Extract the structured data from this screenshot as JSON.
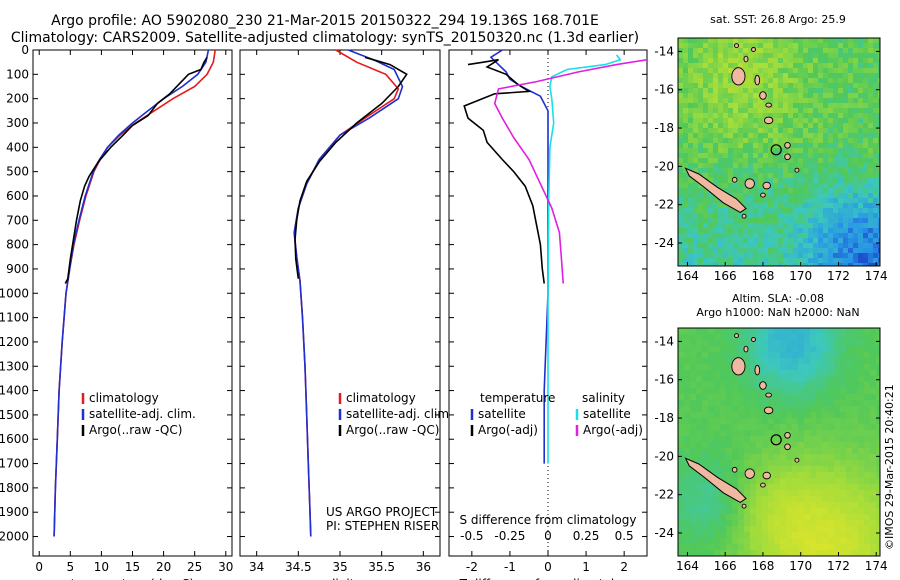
{
  "header": {
    "line1": "Argo profile: AO 5902080_230 21-Mar-2015 20150322_294 19.136S 168.701E",
    "line2": "Climatology: CARS2009. Satellite-adjusted climatology: synTS_20150320.nc (1.3d earlier)"
  },
  "side_text": "©IMOS 29-Mar-2015 20:40:21",
  "colors": {
    "climatology": "#e41a1c",
    "satellite": "#1f2fd0",
    "argo": "#000000",
    "satellite_salinity": "#18e0e8",
    "argo_salinity": "#e020e0"
  },
  "chart_data": [
    {
      "type": "line",
      "xlabel": "temperature (deg C)",
      "xlim": [
        -1,
        31
      ],
      "xticks": [
        0,
        5,
        10,
        15,
        20,
        25,
        30
      ],
      "ylim": [
        0,
        2080
      ],
      "yticks": [
        0,
        100,
        200,
        300,
        400,
        500,
        600,
        700,
        800,
        900,
        1000,
        1100,
        1200,
        1300,
        1400,
        1500,
        1600,
        1700,
        1800,
        1900,
        2000
      ],
      "legend": [
        "climatology",
        "satellite-adj. clim.",
        "Argo(..raw -QC)"
      ],
      "series": [
        {
          "name": "climatology",
          "color": "#e41a1c",
          "points": [
            [
              28.3,
              0
            ],
            [
              28,
              50
            ],
            [
              27,
              100
            ],
            [
              25,
              150
            ],
            [
              21.5,
              200
            ],
            [
              18.5,
              250
            ],
            [
              15.5,
              300
            ],
            [
              13,
              350
            ],
            [
              11,
              400
            ],
            [
              9.8,
              450
            ],
            [
              8.8,
              500
            ],
            [
              7.5,
              600
            ],
            [
              6.5,
              700
            ],
            [
              5.6,
              800
            ],
            [
              4.9,
              900
            ],
            [
              4.3,
              1000
            ],
            [
              3.7,
              1200
            ],
            [
              3.2,
              1400
            ],
            [
              2.9,
              1600
            ],
            [
              2.6,
              1800
            ],
            [
              2.4,
              2000
            ]
          ]
        },
        {
          "name": "satellite-adj. clim.",
          "color": "#1f2fd0",
          "points": [
            [
              27.2,
              0
            ],
            [
              26.8,
              50
            ],
            [
              25.5,
              100
            ],
            [
              23,
              150
            ],
            [
              20,
              200
            ],
            [
              17.5,
              250
            ],
            [
              15,
              300
            ],
            [
              12.8,
              350
            ],
            [
              11,
              400
            ],
            [
              9.7,
              450
            ],
            [
              8.7,
              500
            ],
            [
              7.4,
              600
            ],
            [
              6.4,
              700
            ],
            [
              5.5,
              800
            ],
            [
              4.9,
              900
            ],
            [
              4.3,
              1000
            ],
            [
              3.7,
              1200
            ],
            [
              3.2,
              1400
            ],
            [
              2.9,
              1600
            ],
            [
              2.6,
              1800
            ],
            [
              2.4,
              2000
            ]
          ]
        },
        {
          "name": "Argo(..raw -QC)",
          "color": "#000000",
          "points": [
            [
              27,
              30
            ],
            [
              26.5,
              50
            ],
            [
              26,
              80
            ],
            [
              24,
              100
            ],
            [
              22.5,
              140
            ],
            [
              21,
              180
            ],
            [
              19,
              220
            ],
            [
              17.5,
              270
            ],
            [
              15,
              310
            ],
            [
              13.5,
              350
            ],
            [
              11.5,
              400
            ],
            [
              9.5,
              460
            ],
            [
              8,
              520
            ],
            [
              7.3,
              560
            ],
            [
              6.6,
              620
            ],
            [
              6,
              700
            ],
            [
              5.5,
              780
            ],
            [
              5,
              860
            ],
            [
              4.6,
              940
            ],
            [
              4.2,
              960
            ]
          ]
        }
      ]
    },
    {
      "type": "line",
      "xlabel": "salinity",
      "xlim": [
        33.8,
        36.2
      ],
      "xticks": [
        34,
        34.5,
        35,
        35.5,
        36
      ],
      "ylim": [
        0,
        2080
      ],
      "legend": [
        "climatology",
        "satellite-adj. clim.",
        "Argo(..raw -QC)"
      ],
      "annotation": [
        "US ARGO PROJECT",
        "PI: STEPHEN RISER"
      ],
      "series": [
        {
          "name": "climatology",
          "color": "#e41a1c",
          "points": [
            [
              34.95,
              0
            ],
            [
              35.2,
              50
            ],
            [
              35.55,
              100
            ],
            [
              35.7,
              160
            ],
            [
              35.65,
              200
            ],
            [
              35.3,
              280
            ],
            [
              35,
              350
            ],
            [
              34.75,
              450
            ],
            [
              34.6,
              550
            ],
            [
              34.5,
              650
            ],
            [
              34.45,
              750
            ],
            [
              34.48,
              850
            ],
            [
              34.52,
              950
            ],
            [
              34.55,
              1100
            ],
            [
              34.58,
              1300
            ],
            [
              34.6,
              1500
            ],
            [
              34.62,
              1700
            ],
            [
              34.64,
              1900
            ],
            [
              34.65,
              2000
            ]
          ]
        },
        {
          "name": "satellite-adj. clim.",
          "color": "#1f2fd0",
          "points": [
            [
              35.1,
              0
            ],
            [
              35.4,
              40
            ],
            [
              35.65,
              80
            ],
            [
              35.75,
              150
            ],
            [
              35.7,
              200
            ],
            [
              35.35,
              280
            ],
            [
              35,
              350
            ],
            [
              34.75,
              450
            ],
            [
              34.6,
              550
            ],
            [
              34.5,
              650
            ],
            [
              34.45,
              750
            ],
            [
              34.48,
              850
            ],
            [
              34.52,
              950
            ],
            [
              34.55,
              1100
            ],
            [
              34.58,
              1300
            ],
            [
              34.6,
              1500
            ],
            [
              34.62,
              1700
            ],
            [
              34.64,
              1900
            ],
            [
              34.65,
              2000
            ]
          ]
        },
        {
          "name": "Argo(..raw -QC)",
          "color": "#000000",
          "points": [
            [
              35.3,
              30
            ],
            [
              35.6,
              60
            ],
            [
              35.8,
              100
            ],
            [
              35.7,
              150
            ],
            [
              35.5,
              220
            ],
            [
              35.2,
              300
            ],
            [
              34.95,
              380
            ],
            [
              34.75,
              460
            ],
            [
              34.6,
              540
            ],
            [
              34.52,
              620
            ],
            [
              34.48,
              700
            ],
            [
              34.46,
              780
            ],
            [
              34.47,
              860
            ],
            [
              34.5,
              940
            ]
          ]
        }
      ]
    },
    {
      "type": "line",
      "xlabel": "T difference from climatology",
      "xlabel2": "S difference from climatology",
      "xlim": [
        -2.6,
        2.6
      ],
      "xticks": [
        -2,
        -1,
        0,
        1,
        2
      ],
      "xticks_s": [
        "-0.5",
        "-0.25",
        "0",
        "0.25",
        "0.5"
      ],
      "ylim": [
        0,
        2080
      ],
      "legend_temperature": [
        "temperature",
        "satellite",
        "Argo(-adj)"
      ],
      "legend_salinity": [
        "salinity",
        "satellite",
        "Argo(-adj)"
      ],
      "series": [
        {
          "name": "temperature satellite",
          "color": "#1f2fd0",
          "points": [
            [
              -1.2,
              0
            ],
            [
              -1.5,
              30
            ],
            [
              -1.3,
              60
            ],
            [
              -1.1,
              90
            ],
            [
              -1.0,
              120
            ],
            [
              -0.7,
              150
            ],
            [
              -0.2,
              190
            ],
            [
              0,
              250
            ],
            [
              0,
              300
            ],
            [
              0,
              1000
            ],
            [
              -0.1,
              1400
            ],
            [
              -0.1,
              1700
            ]
          ]
        },
        {
          "name": "temperature Argo(-adj)",
          "color": "#000000",
          "points": [
            [
              -2.1,
              60
            ],
            [
              -1.7,
              50
            ],
            [
              -1.3,
              40
            ],
            [
              -1.6,
              70
            ],
            [
              -1.1,
              100
            ],
            [
              -0.8,
              140
            ],
            [
              -0.5,
              170
            ],
            [
              -1.4,
              180
            ],
            [
              -2.2,
              230
            ],
            [
              -2.1,
              280
            ],
            [
              -1.7,
              330
            ],
            [
              -1.6,
              380
            ],
            [
              -1.2,
              450
            ],
            [
              -0.9,
              500
            ],
            [
              -0.6,
              560
            ],
            [
              -0.4,
              640
            ],
            [
              -0.3,
              720
            ],
            [
              -0.2,
              800
            ],
            [
              -0.15,
              900
            ],
            [
              -0.1,
              960
            ]
          ]
        },
        {
          "name": "salinity satellite",
          "color": "#18e0e8",
          "points": [
            [
              1.8,
              20
            ],
            [
              1.9,
              40
            ],
            [
              1.5,
              60
            ],
            [
              0.5,
              80
            ],
            [
              0.1,
              110
            ],
            [
              0.05,
              150
            ],
            [
              0.1,
              200
            ],
            [
              0.15,
              300
            ],
            [
              0.05,
              400
            ],
            [
              0.02,
              600
            ],
            [
              0,
              1000
            ],
            [
              0,
              1700
            ]
          ]
        },
        {
          "name": "salinity Argo(-adj)",
          "color": "#e020e0",
          "points": [
            [
              2.6,
              40
            ],
            [
              1.8,
              60
            ],
            [
              0.8,
              90
            ],
            [
              -0.3,
              130
            ],
            [
              -1.3,
              160
            ],
            [
              -1.4,
              220
            ],
            [
              -1.2,
              280
            ],
            [
              -0.9,
              360
            ],
            [
              -0.5,
              450
            ],
            [
              -0.2,
              550
            ],
            [
              0.1,
              650
            ],
            [
              0.3,
              750
            ],
            [
              0.35,
              850
            ],
            [
              0.4,
              960
            ]
          ]
        }
      ]
    },
    {
      "type": "heatmap",
      "title": "sat. SST: 26.8 Argo: 25.9",
      "xlim": [
        163.5,
        174.2
      ],
      "ylim": [
        -25.2,
        -13.3
      ],
      "xticks": [
        164,
        166,
        168,
        170,
        172,
        174
      ],
      "yticks": [
        -14,
        -16,
        -18,
        -20,
        -22,
        -24
      ],
      "marker": {
        "lon": 168.701,
        "lat": -19.136
      }
    },
    {
      "type": "heatmap",
      "title": "Altim. SLA: -0.08",
      "title2": "Argo h1000: NaN h2000: NaN",
      "xlim": [
        163.5,
        174.2
      ],
      "ylim": [
        -25.2,
        -13.3
      ],
      "xticks": [
        164,
        166,
        168,
        170,
        172,
        174
      ],
      "yticks": [
        -14,
        -16,
        -18,
        -20,
        -22,
        -24
      ],
      "marker": {
        "lon": 168.701,
        "lat": -19.136
      }
    }
  ]
}
